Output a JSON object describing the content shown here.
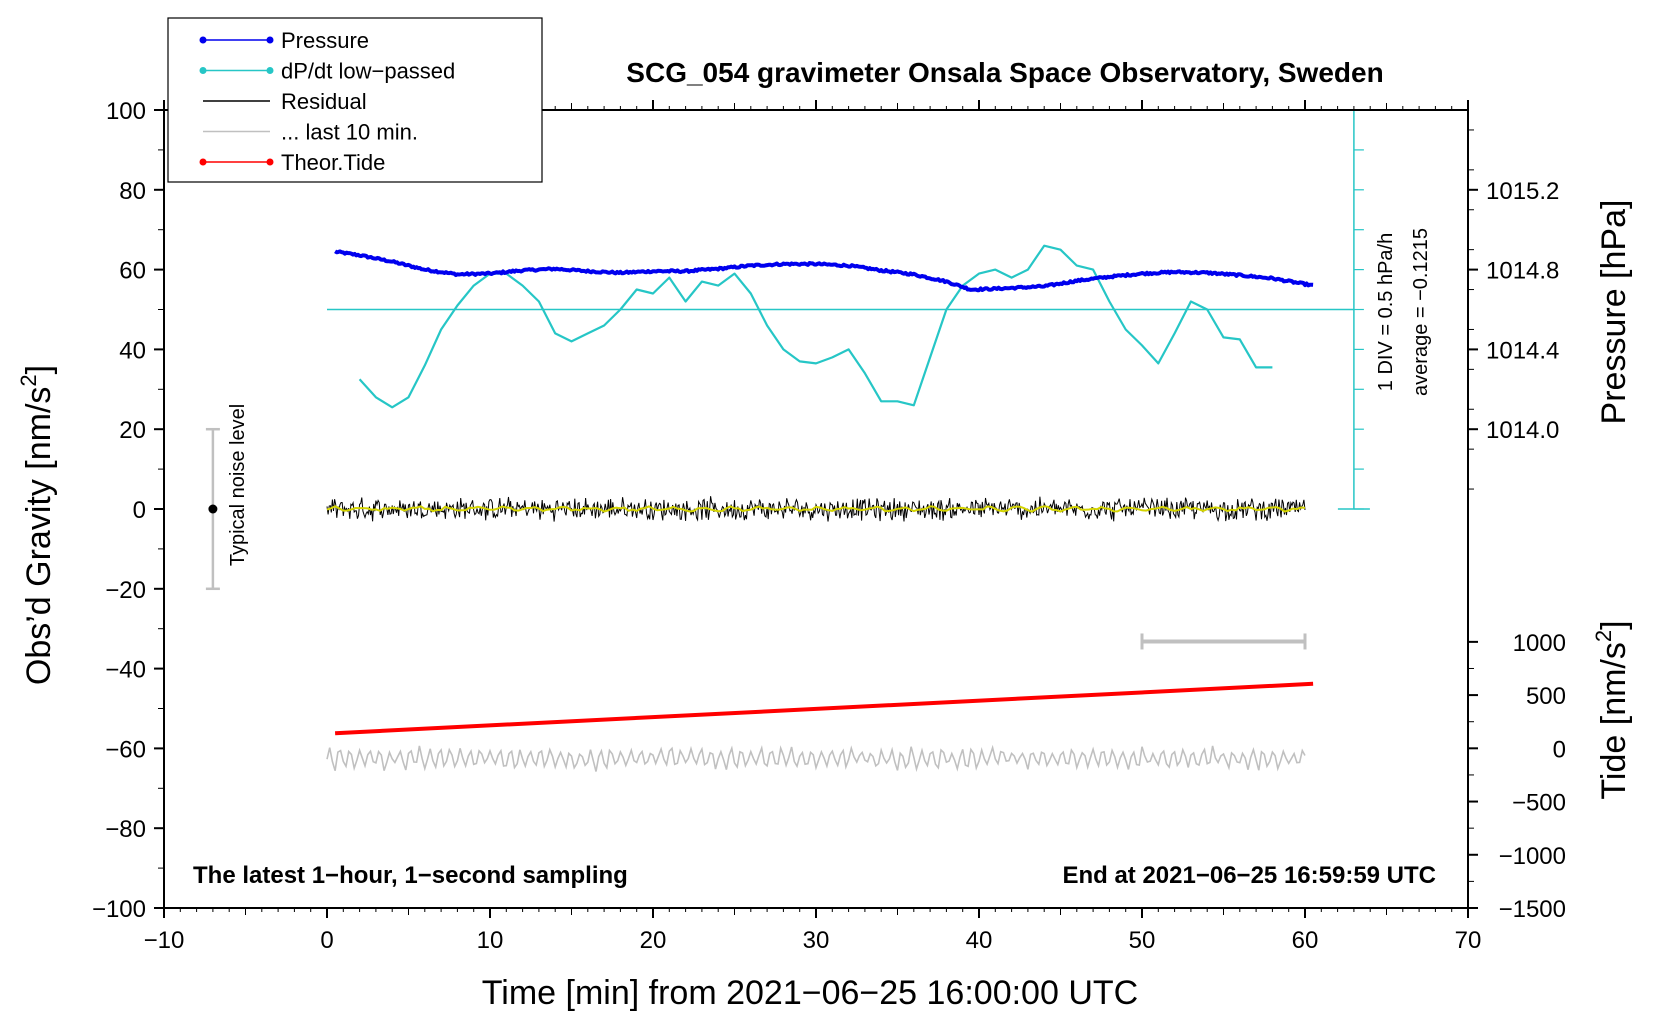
{
  "chart_data": {
    "type": "line",
    "title": "SCG_054 gravimeter Onsala Space Observatory, Sweden",
    "xlabel": "Time [min] from 2021−06−25 16:00:00 UTC",
    "ylabel_left": "Obs’d Gravity [nm/s",
    "ylabel_left_sup": "2",
    "ylabel_left_end": "]",
    "ylabel_right_pressure": "Pressure [hPa]",
    "ylabel_right_tide": "Tide [nm/s",
    "ylabel_right_tide_sup": "2",
    "ylabel_right_tide_end": "]",
    "xlim": [
      -10,
      70
    ],
    "ylim": [
      -100,
      100
    ],
    "x_ticks": [
      -10,
      0,
      10,
      20,
      30,
      40,
      50,
      60,
      70
    ],
    "x_tick_labels": [
      "−10",
      "0",
      "10",
      "20",
      "30",
      "40",
      "50",
      "60",
      "70"
    ],
    "y_ticks": [
      -100,
      -80,
      -60,
      -40,
      -20,
      0,
      20,
      40,
      60,
      80,
      100
    ],
    "y_tick_labels": [
      "−100",
      "−80",
      "−60",
      "−40",
      "−20",
      "0",
      "20",
      "40",
      "60",
      "80",
      "100"
    ],
    "pressure_axis": {
      "ticks": [
        1014.0,
        1014.4,
        1014.8,
        1015.2
      ],
      "tick_labels": [
        "1014.0",
        "1014.4",
        "1014.8",
        "1015.2"
      ],
      "range": [
        1013.6,
        1015.6
      ],
      "gravity_at_range": [
        0,
        100
      ]
    },
    "tide_axis": {
      "ticks": [
        -1500,
        -1000,
        -500,
        0,
        500,
        1000
      ],
      "tick_labels": [
        "−1500",
        "−1000",
        "−500",
        "0",
        "500",
        "1000"
      ],
      "range": [
        -1500,
        1000
      ],
      "gravity_at_range": [
        -100,
        -33.3
      ]
    },
    "legend": {
      "placement": "top-left",
      "entries": [
        {
          "label": "Pressure",
          "color": "#0000ee",
          "marker": true
        },
        {
          "label": "dP/dt low−passed",
          "color": "#26c6c6",
          "marker": true
        },
        {
          "label": "Residual",
          "color": "#000000",
          "marker": false
        },
        {
          "label": "... last 10 min.",
          "color": "#c0c0c0",
          "marker": false
        },
        {
          "label": "Theor.Tide",
          "color": "#ff0000",
          "marker": true
        }
      ]
    },
    "series": [
      {
        "name": "Pressure",
        "color": "#0000ee",
        "x": [
          0.5,
          2,
          4,
          6,
          8,
          10,
          12,
          14,
          16,
          18,
          20,
          22,
          24,
          26,
          28,
          30,
          32,
          34,
          36,
          38,
          39.5,
          41,
          44,
          46,
          48,
          50,
          52,
          54,
          56,
          58,
          60.5
        ],
        "y": [
          64.5,
          63.6,
          62.0,
          60.0,
          58.8,
          59.0,
          59.8,
          60.2,
          59.6,
          59.2,
          59.6,
          59.6,
          60.2,
          61.0,
          61.4,
          61.4,
          61.0,
          59.8,
          58.8,
          57.0,
          55.0,
          55.2,
          55.8,
          57.2,
          58.2,
          59.0,
          59.4,
          59.2,
          58.6,
          57.8,
          56.0
        ]
      },
      {
        "name": "dP/dt low−passed",
        "color": "#26c6c6",
        "x": [
          2,
          3,
          4,
          5,
          6,
          7,
          8,
          9,
          10,
          11,
          12,
          13,
          14,
          15,
          16,
          17,
          18,
          19,
          20,
          21,
          22,
          23,
          24,
          25,
          26,
          27,
          28,
          29,
          30,
          31,
          32,
          33,
          34,
          35,
          36,
          37,
          38,
          39,
          40,
          41,
          42,
          43,
          44,
          45,
          46,
          47,
          48,
          49,
          50,
          51,
          52,
          53,
          54,
          55,
          56,
          57,
          58
        ],
        "y": [
          32.5,
          28,
          25.5,
          28,
          36,
          45,
          51,
          56,
          59,
          59,
          56,
          52,
          44,
          42,
          44,
          46,
          50,
          55,
          54,
          58,
          52,
          57,
          56,
          59,
          54,
          46,
          40,
          37,
          36.5,
          38,
          40,
          34,
          27,
          27,
          26,
          38,
          50,
          56,
          59,
          60,
          58,
          60,
          66,
          65,
          61,
          60,
          52,
          45,
          41,
          36.5,
          44,
          52,
          50,
          43,
          42.5,
          35.5,
          35.5
        ]
      },
      {
        "name": "Residual",
        "color": "#000000",
        "x_range": [
          0,
          60
        ],
        "amplitude": 3
      },
      {
        "name": "... last 10 min.",
        "color": "#c0c0c0",
        "x_range": [
          0,
          60
        ],
        "baseline": -62.5,
        "amplitude": 3
      },
      {
        "name": "Theor.Tide",
        "color": "#ff0000",
        "x": [
          0.5,
          60.5
        ],
        "y": [
          -56.2,
          -43.8
        ]
      }
    ],
    "dpdt_scale": {
      "x": 63,
      "y_range": [
        0,
        100
      ],
      "reference_y": 50,
      "reference_x_range": [
        0,
        63
      ],
      "label_div": "1 DIV = 0.5 hPa/h",
      "label_average": "average = −0.1215"
    },
    "noise_bar": {
      "x": -7,
      "y": 0,
      "half_range": 20,
      "label": "Typical noise level"
    },
    "last_10_min_bar": {
      "x_range": [
        50,
        60
      ],
      "y": -33.2
    },
    "annotation_left": "The latest 1−hour, 1−second sampling",
    "annotation_right": "End at 2021−06−25 16:59:59 UTC"
  }
}
